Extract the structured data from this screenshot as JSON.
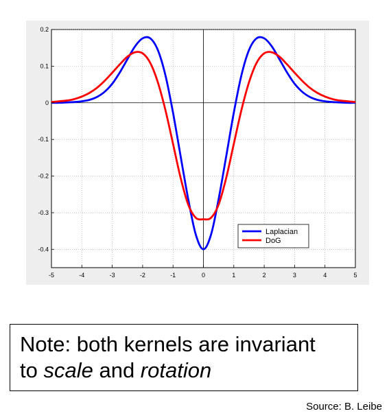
{
  "chart_data": {
    "type": "line",
    "xlim": [
      -5,
      5
    ],
    "ylim": [
      -0.45,
      0.2
    ],
    "xticks": [
      -5,
      -4,
      -3,
      -2,
      -1,
      0,
      1,
      2,
      3,
      4,
      5
    ],
    "yticks": [
      0.2,
      0.1,
      0,
      -0.1,
      -0.2,
      -0.3,
      -0.4
    ],
    "grid": true,
    "legend": "lower-right",
    "series": [
      {
        "name": "Laplacian",
        "color": "#0000ff",
        "x": [
          -5,
          -4.75,
          -4.5,
          -4.25,
          -4,
          -3.75,
          -3.5,
          -3.25,
          -3,
          -2.75,
          -2.5,
          -2.25,
          -2,
          -1.75,
          -1.5,
          -1.25,
          -1,
          -0.75,
          -0.5,
          -0.25,
          0,
          0.25,
          0.5,
          0.75,
          1,
          1.25,
          1.5,
          1.75,
          2,
          2.25,
          2.5,
          2.75,
          3,
          3.25,
          3.5,
          3.75,
          4,
          4.25,
          4.5,
          4.75,
          5
        ],
        "y": [
          0.0,
          0.0,
          0.001,
          0.002,
          0.004,
          0.008,
          0.016,
          0.03,
          0.052,
          0.083,
          0.119,
          0.154,
          0.176,
          0.176,
          0.144,
          0.075,
          -0.027,
          -0.146,
          -0.263,
          -0.36,
          -0.4,
          -0.36,
          -0.263,
          -0.146,
          -0.027,
          0.075,
          0.144,
          0.176,
          0.176,
          0.154,
          0.119,
          0.083,
          0.052,
          0.03,
          0.016,
          0.008,
          0.004,
          0.002,
          0.001,
          0.0,
          0.0
        ]
      },
      {
        "name": "DoG",
        "color": "#ff0000",
        "x": [
          -5,
          -4.75,
          -4.5,
          -4.25,
          -4,
          -3.75,
          -3.5,
          -3.25,
          -3,
          -2.75,
          -2.5,
          -2.25,
          -2,
          -1.75,
          -1.5,
          -1.25,
          -1,
          -0.75,
          -0.5,
          -0.25,
          0,
          0.25,
          0.5,
          0.75,
          1,
          1.25,
          1.5,
          1.75,
          2,
          2.25,
          2.5,
          2.75,
          3,
          3.25,
          3.5,
          3.75,
          4,
          4.25,
          4.5,
          4.75,
          5
        ],
        "y": [
          0.002,
          0.004,
          0.006,
          0.01,
          0.017,
          0.027,
          0.041,
          0.06,
          0.082,
          0.105,
          0.126,
          0.138,
          0.135,
          0.109,
          0.056,
          -0.02,
          -0.112,
          -0.205,
          -0.278,
          -0.314,
          -0.318,
          -0.314,
          -0.278,
          -0.205,
          -0.112,
          -0.02,
          0.056,
          0.109,
          0.135,
          0.138,
          0.126,
          0.105,
          0.082,
          0.06,
          0.041,
          0.027,
          0.017,
          0.01,
          0.006,
          0.004,
          0.002
        ]
      }
    ]
  },
  "note": {
    "line1": "Note: both kernels are invariant",
    "line2_prefix": "to ",
    "line2_em1": "scale",
    "line2_mid": " and ",
    "line2_em2": "rotation"
  },
  "source": "Source: B. Leibe"
}
